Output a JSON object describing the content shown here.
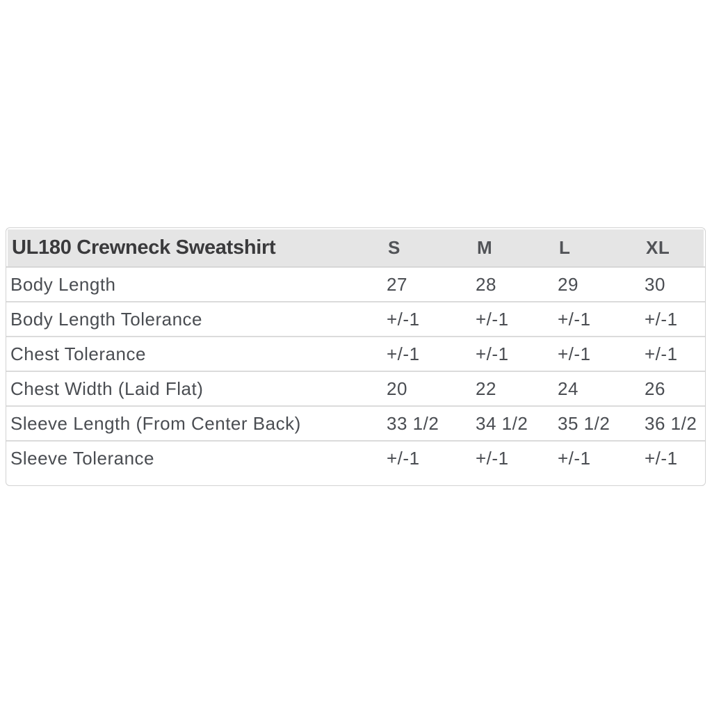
{
  "chart_data": {
    "type": "table",
    "title": "UL180 Crewneck Sweatshirt",
    "columns": [
      "S",
      "M",
      "L",
      "XL"
    ],
    "rows": [
      {
        "label": "Body Length",
        "values": [
          "27",
          "28",
          "29",
          "30"
        ]
      },
      {
        "label": "Body Length Tolerance",
        "values": [
          "+/-1",
          "+/-1",
          "+/-1",
          "+/-1"
        ]
      },
      {
        "label": "Chest Tolerance",
        "values": [
          "+/-1",
          "+/-1",
          "+/-1",
          "+/-1"
        ]
      },
      {
        "label": "Chest Width (Laid Flat)",
        "values": [
          "20",
          "22",
          "24",
          "26"
        ]
      },
      {
        "label": "Sleeve Length (From Center Back)",
        "values": [
          "33 1/2",
          "34 1/2",
          "35 1/2",
          "36 1/2"
        ]
      },
      {
        "label": "Sleeve Tolerance",
        "values": [
          "+/-1",
          "+/-1",
          "+/-1",
          "+/-1"
        ]
      }
    ]
  },
  "style": {
    "header_background": "#e5e5e5",
    "divider_color": "#dbdbdb",
    "outer_border_color": "#d2d2d2",
    "title_text_color": "#3a3a3c",
    "body_text_color": "#4a4d52",
    "page_background": "#ffffff"
  }
}
